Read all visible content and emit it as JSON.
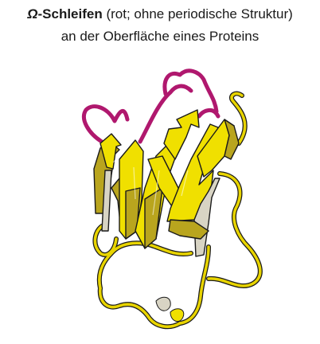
{
  "caption": {
    "omega_symbol": "Ω",
    "bold_term": "-Schleifen",
    "line1_rest": " (rot; ohne periodische Struktur)",
    "line2": "an der Oberfläche eines Proteins"
  },
  "colors": {
    "loop_red": "#b0186e",
    "coil_yellow": "#e8d400",
    "sheet_yellow": "#f0e000",
    "sheet_shade": "#b9a51e",
    "sheet_side": "#d8d4c4",
    "outline": "#1a1a1a"
  }
}
